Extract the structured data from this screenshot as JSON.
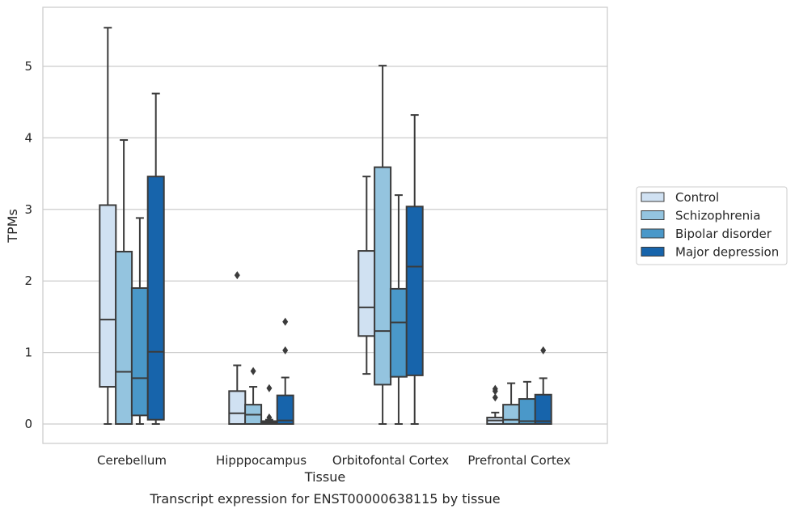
{
  "chart_data": {
    "type": "box",
    "caption": "Transcript expression for ENST00000638115 by tissue",
    "xlabel": "Tissue",
    "ylabel": "TPMs",
    "ylim": [
      -0.27,
      5.85
    ],
    "yticks": [
      "0",
      "1",
      "2",
      "3",
      "4",
      "5"
    ],
    "grid": true,
    "legend_placement": "right",
    "categories": [
      "Cerebellum",
      "Hipppocampus",
      "Orbitofontal Cortex",
      "Prefrontal Cortex"
    ],
    "series": [
      {
        "name": "Control",
        "color": "#d0e1f2",
        "boxes": [
          {
            "whisker_low": 0,
            "q1": 0.52,
            "median": 1.46,
            "q3": 3.06,
            "whisker_high": 5.54,
            "outliers": []
          },
          {
            "whisker_low": 0,
            "q1": 0,
            "median": 0.15,
            "q3": 0.46,
            "whisker_high": 0.82,
            "outliers": [
              2.08
            ]
          },
          {
            "whisker_low": 0.7,
            "q1": 1.23,
            "median": 1.63,
            "q3": 2.42,
            "whisker_high": 3.46,
            "outliers": []
          },
          {
            "whisker_low": 0,
            "q1": 0,
            "median": 0.05,
            "q3": 0.09,
            "whisker_high": 0.16,
            "outliers": [
              0.37,
              0.46,
              0.49
            ]
          }
        ]
      },
      {
        "name": "Schizophrenia",
        "color": "#94c4df",
        "boxes": [
          {
            "whisker_low": 0,
            "q1": 0,
            "median": 0.73,
            "q3": 2.41,
            "whisker_high": 3.97,
            "outliers": []
          },
          {
            "whisker_low": 0,
            "q1": 0,
            "median": 0.13,
            "q3": 0.27,
            "whisker_high": 0.52,
            "outliers": [
              0.74
            ]
          },
          {
            "whisker_low": 0,
            "q1": 0.55,
            "median": 1.3,
            "q3": 3.59,
            "whisker_high": 5.01,
            "outliers": []
          },
          {
            "whisker_low": 0,
            "q1": 0,
            "median": 0.06,
            "q3": 0.27,
            "whisker_high": 0.57,
            "outliers": []
          }
        ]
      },
      {
        "name": "Bipolar disorder",
        "color": "#4a98c9",
        "boxes": [
          {
            "whisker_low": 0,
            "q1": 0.12,
            "median": 0.64,
            "q3": 1.9,
            "whisker_high": 2.88,
            "outliers": []
          },
          {
            "whisker_low": 0,
            "q1": 0,
            "median": 0.02,
            "q3": 0.04,
            "whisker_high": 0.06,
            "outliers": [
              0.09,
              0.5
            ]
          },
          {
            "whisker_low": 0,
            "q1": 0.66,
            "median": 1.42,
            "q3": 1.89,
            "whisker_high": 3.2,
            "outliers": []
          },
          {
            "whisker_low": 0,
            "q1": 0,
            "median": 0.04,
            "q3": 0.35,
            "whisker_high": 0.59,
            "outliers": []
          }
        ]
      },
      {
        "name": "Major depression",
        "color": "#1764ab",
        "boxes": [
          {
            "whisker_low": 0,
            "q1": 0.06,
            "median": 1.01,
            "q3": 3.46,
            "whisker_high": 4.62,
            "outliers": []
          },
          {
            "whisker_low": 0,
            "q1": 0,
            "median": 0.05,
            "q3": 0.4,
            "whisker_high": 0.65,
            "outliers": [
              1.03,
              1.43
            ]
          },
          {
            "whisker_low": 0,
            "q1": 0.68,
            "median": 2.2,
            "q3": 3.04,
            "whisker_high": 4.32,
            "outliers": []
          },
          {
            "whisker_low": 0,
            "q1": 0,
            "median": 0.04,
            "q3": 0.41,
            "whisker_high": 0.64,
            "outliers": [
              1.03
            ]
          }
        ]
      }
    ]
  }
}
